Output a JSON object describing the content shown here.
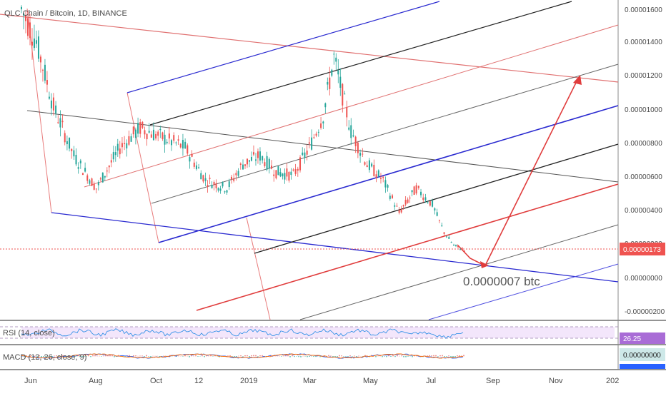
{
  "header": {
    "title": "QLC Chain / Bitcoin, 1D, BINANCE"
  },
  "price_axis": {
    "ticks": [
      "0.00001600",
      "0.00001400",
      "0.00001200",
      "0.00001000",
      "0.00000800",
      "0.00000600",
      "0.00000400",
      "0.00000200",
      "0.00000000",
      "-0.00000200"
    ],
    "last_price": "0.00000173"
  },
  "annotation": {
    "target": "0.0000007 btc"
  },
  "rsi_panel": {
    "label": "RSI (14, close)",
    "value": "26.25"
  },
  "macd_panel": {
    "label": "MACD (12, 26, close, 9)",
    "value": "0.00000000"
  },
  "time_axis": {
    "labels": [
      "Jun",
      "Aug",
      "Oct",
      "12",
      "2019",
      "Mar",
      "May",
      "Jul",
      "Sep",
      "Nov",
      "202"
    ]
  },
  "colors": {
    "up": "#26a69a",
    "down": "#ef5350",
    "blue_line": "#2a2ad0",
    "red_line": "#e03c3c",
    "black_line": "#222222",
    "rsi_fill": "#f3e6fb",
    "price_badge": "#ef5350",
    "macd_badge": "#cde8e8"
  },
  "chart_data": {
    "type": "line",
    "title": "QLC Chain / Bitcoin, 1D, BINANCE",
    "y_unit": "BTC",
    "ylim": [
      -2.2e-06,
      1.67e-05
    ],
    "x": [
      "2018-06-01",
      "2018-06-15",
      "2018-07-01",
      "2018-07-20",
      "2018-08-10",
      "2018-09-01",
      "2018-09-20",
      "2018-10-15",
      "2018-11-01",
      "2018-11-20",
      "2018-12-10",
      "2018-12-25",
      "2019-01-10",
      "2019-01-25",
      "2019-02-10",
      "2019-02-25",
      "2019-03-10",
      "2019-03-20",
      "2019-04-05",
      "2019-04-20",
      "2019-05-05",
      "2019-05-20",
      "2019-06-05",
      "2019-06-20",
      "2019-07-01",
      "2019-07-10",
      "2019-07-20"
    ],
    "series": [
      {
        "values": [
          1.65e-05,
          1.45e-05,
          1.05e-05,
          7.5e-06,
          5.5e-06,
          8e-06,
          9.2e-06,
          8.5e-06,
          8e-06,
          6e-06,
          5.5e-06,
          7e-06,
          7.5e-06,
          6.5e-06,
          6.3e-06,
          8e-06,
          1e-05,
          1.35e-05,
          9e-06,
          7e-06,
          6e-06,
          4e-06,
          5.5e-06,
          4.5e-06,
          2.8e-06,
          2e-06,
          1.7e-06
        ]
      }
    ],
    "rsi": {
      "label": "RSI (14, close)",
      "last": 26.25
    },
    "macd": {
      "label": "MACD (12, 26, close, 9)",
      "last": 0.0
    },
    "target_annotation": "0.0000007 btc",
    "last_price": 1.73e-06,
    "grid": false,
    "legend": "none"
  }
}
